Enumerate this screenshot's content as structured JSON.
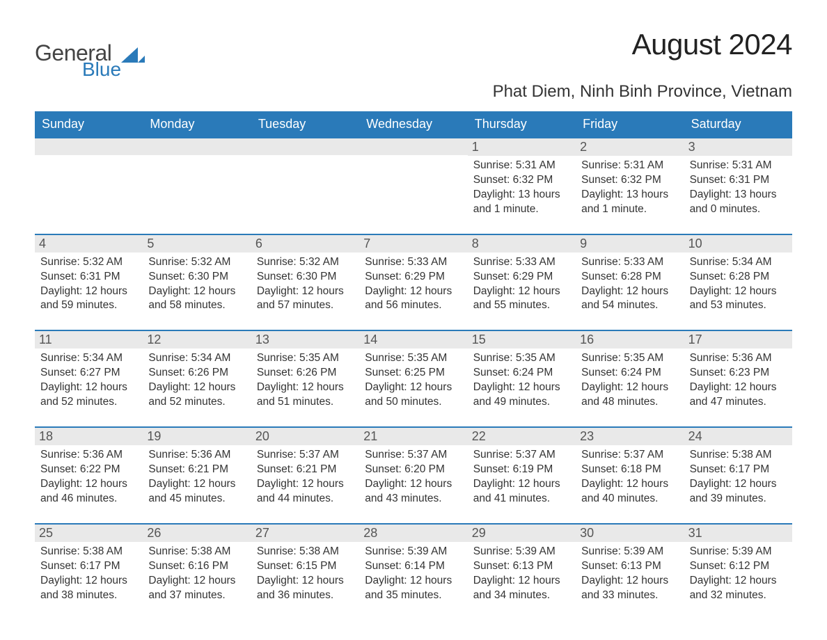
{
  "logo": {
    "word1": "General",
    "word2": "Blue",
    "tri_color": "#2a7ab9"
  },
  "title": "August 2024",
  "location": "Phat Diem, Ninh Binh Province, Vietnam",
  "colors": {
    "header_bg": "#2a7ab9",
    "header_text": "#ffffff",
    "daynum_bg": "#e9e9e9",
    "week_border": "#2a7ab9",
    "body_text": "#333333"
  },
  "dow": [
    "Sunday",
    "Monday",
    "Tuesday",
    "Wednesday",
    "Thursday",
    "Friday",
    "Saturday"
  ],
  "weeks": [
    [
      null,
      null,
      null,
      null,
      {
        "n": "1",
        "sr": "5:31 AM",
        "ss": "6:32 PM",
        "dl": "13 hours and 1 minute."
      },
      {
        "n": "2",
        "sr": "5:31 AM",
        "ss": "6:32 PM",
        "dl": "13 hours and 1 minute."
      },
      {
        "n": "3",
        "sr": "5:31 AM",
        "ss": "6:31 PM",
        "dl": "13 hours and 0 minutes."
      }
    ],
    [
      {
        "n": "4",
        "sr": "5:32 AM",
        "ss": "6:31 PM",
        "dl": "12 hours and 59 minutes."
      },
      {
        "n": "5",
        "sr": "5:32 AM",
        "ss": "6:30 PM",
        "dl": "12 hours and 58 minutes."
      },
      {
        "n": "6",
        "sr": "5:32 AM",
        "ss": "6:30 PM",
        "dl": "12 hours and 57 minutes."
      },
      {
        "n": "7",
        "sr": "5:33 AM",
        "ss": "6:29 PM",
        "dl": "12 hours and 56 minutes."
      },
      {
        "n": "8",
        "sr": "5:33 AM",
        "ss": "6:29 PM",
        "dl": "12 hours and 55 minutes."
      },
      {
        "n": "9",
        "sr": "5:33 AM",
        "ss": "6:28 PM",
        "dl": "12 hours and 54 minutes."
      },
      {
        "n": "10",
        "sr": "5:34 AM",
        "ss": "6:28 PM",
        "dl": "12 hours and 53 minutes."
      }
    ],
    [
      {
        "n": "11",
        "sr": "5:34 AM",
        "ss": "6:27 PM",
        "dl": "12 hours and 52 minutes."
      },
      {
        "n": "12",
        "sr": "5:34 AM",
        "ss": "6:26 PM",
        "dl": "12 hours and 52 minutes."
      },
      {
        "n": "13",
        "sr": "5:35 AM",
        "ss": "6:26 PM",
        "dl": "12 hours and 51 minutes."
      },
      {
        "n": "14",
        "sr": "5:35 AM",
        "ss": "6:25 PM",
        "dl": "12 hours and 50 minutes."
      },
      {
        "n": "15",
        "sr": "5:35 AM",
        "ss": "6:24 PM",
        "dl": "12 hours and 49 minutes."
      },
      {
        "n": "16",
        "sr": "5:35 AM",
        "ss": "6:24 PM",
        "dl": "12 hours and 48 minutes."
      },
      {
        "n": "17",
        "sr": "5:36 AM",
        "ss": "6:23 PM",
        "dl": "12 hours and 47 minutes."
      }
    ],
    [
      {
        "n": "18",
        "sr": "5:36 AM",
        "ss": "6:22 PM",
        "dl": "12 hours and 46 minutes."
      },
      {
        "n": "19",
        "sr": "5:36 AM",
        "ss": "6:21 PM",
        "dl": "12 hours and 45 minutes."
      },
      {
        "n": "20",
        "sr": "5:37 AM",
        "ss": "6:21 PM",
        "dl": "12 hours and 44 minutes."
      },
      {
        "n": "21",
        "sr": "5:37 AM",
        "ss": "6:20 PM",
        "dl": "12 hours and 43 minutes."
      },
      {
        "n": "22",
        "sr": "5:37 AM",
        "ss": "6:19 PM",
        "dl": "12 hours and 41 minutes."
      },
      {
        "n": "23",
        "sr": "5:37 AM",
        "ss": "6:18 PM",
        "dl": "12 hours and 40 minutes."
      },
      {
        "n": "24",
        "sr": "5:38 AM",
        "ss": "6:17 PM",
        "dl": "12 hours and 39 minutes."
      }
    ],
    [
      {
        "n": "25",
        "sr": "5:38 AM",
        "ss": "6:17 PM",
        "dl": "12 hours and 38 minutes."
      },
      {
        "n": "26",
        "sr": "5:38 AM",
        "ss": "6:16 PM",
        "dl": "12 hours and 37 minutes."
      },
      {
        "n": "27",
        "sr": "5:38 AM",
        "ss": "6:15 PM",
        "dl": "12 hours and 36 minutes."
      },
      {
        "n": "28",
        "sr": "5:39 AM",
        "ss": "6:14 PM",
        "dl": "12 hours and 35 minutes."
      },
      {
        "n": "29",
        "sr": "5:39 AM",
        "ss": "6:13 PM",
        "dl": "12 hours and 34 minutes."
      },
      {
        "n": "30",
        "sr": "5:39 AM",
        "ss": "6:13 PM",
        "dl": "12 hours and 33 minutes."
      },
      {
        "n": "31",
        "sr": "5:39 AM",
        "ss": "6:12 PM",
        "dl": "12 hours and 32 minutes."
      }
    ]
  ],
  "labels": {
    "sunrise": "Sunrise:",
    "sunset": "Sunset:",
    "daylight": "Daylight:"
  }
}
